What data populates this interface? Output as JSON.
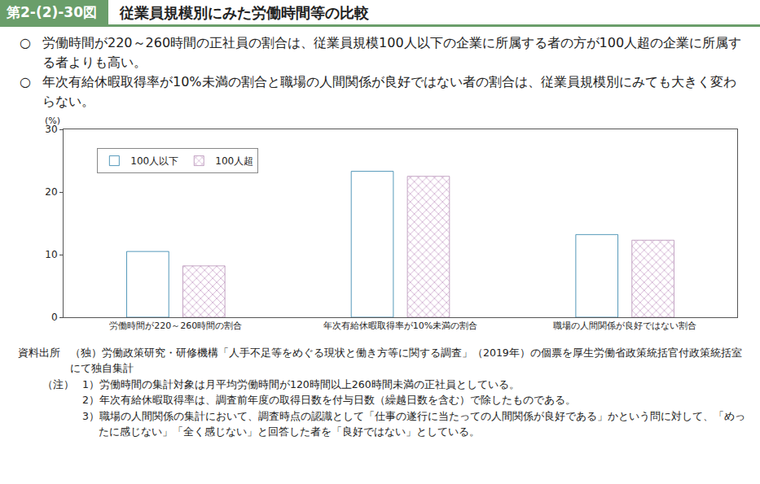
{
  "chart_data": {
    "type": "bar",
    "figure_number": "第2-(2)-30図",
    "title": "従業員規模別にみた労働時間等の比較",
    "summary": [
      "労働時間が220～260時間の正社員の割合は、従業員規模100人以下の企業に所属する者の方が100人超の企業に所属する者よりも高い。",
      "年次有給休暇取得率が10%未満の割合と職場の人間関係が良好ではない者の割合は、従業員規模別にみても大きく変わらない。"
    ],
    "bullet": "○",
    "ylabel": "(%)",
    "categories": [
      "労働時間が220～260時間の割合",
      "年次有給休暇取得率が10%未満の割合",
      "職場の人間関係が良好ではない割合"
    ],
    "series": [
      {
        "name": "100人以下",
        "color": "#3fa7d6",
        "values": [
          10.5,
          23.3,
          13.2
        ]
      },
      {
        "name": "100人超",
        "color": "#f3e4f3",
        "values": [
          8.2,
          22.5,
          12.3
        ]
      }
    ],
    "ylim": [
      0,
      30
    ],
    "yticks": [
      0,
      10,
      20,
      30
    ],
    "grid": false,
    "legend": "upper left",
    "data_labels": false,
    "source_label": "資料出所",
    "source": "（独）労働政策研究・研修機構「人手不足等をめぐる現状と働き方等に関する調査」（2019年）の個票を厚生労働省政策統括官付政策統括室にて独自集計",
    "notes_label": "（注）",
    "notes": [
      "1）労働時間の集計対象は月平均労働時間が120時間以上260時間未満の正社員としている。",
      "2）年次有給休暇取得率は、調査前年度の取得日数を付与日数（繰越日数を含む）で除したものである。",
      "3）職場の人間関係の集計において、調査時点の認識として「仕事の遂行に当たっての人間関係が良好である」かという問に対して、「めったに感じない」「全く感じない」と回答した者を「良好ではない」としている。"
    ]
  }
}
